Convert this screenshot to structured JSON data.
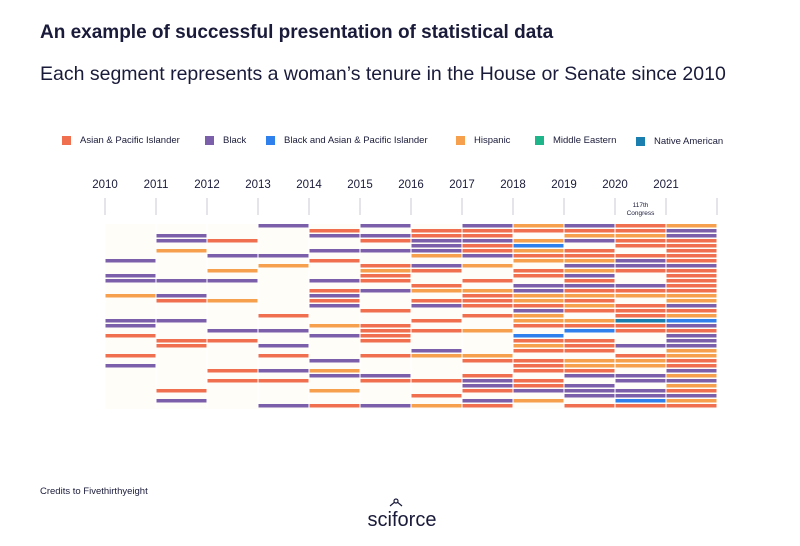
{
  "header": {
    "title": "An example of successful presentation of statistical data",
    "subtitle": "Each segment represents a woman’s tenure in the House or Senate since 2010"
  },
  "legend": [
    {
      "label": "Asian & Pacific Islander",
      "color": "#ef6f4f"
    },
    {
      "label": "Black",
      "color": "#7b5fab"
    },
    {
      "label": "Black and Asian & Pacific Islander",
      "color": "#2f80ed"
    },
    {
      "label": "Hispanic",
      "color": "#f6a04d"
    },
    {
      "label": "Middle Eastern",
      "color": "#1fb58a"
    },
    {
      "label": "Native American",
      "color": "#1a7fae"
    }
  ],
  "footer": {
    "credits": "Credits to Fivethirthyeight",
    "logo_text": "sciforce"
  },
  "chart_data": {
    "type": "bar",
    "layout": "stacked segment rows per year",
    "x": [
      "2010",
      "2011",
      "2012",
      "2013",
      "2014",
      "2015",
      "2016",
      "2017",
      "2018",
      "2019",
      "2020",
      "2021"
    ],
    "annotation": {
      "year": "2020",
      "text": "117th Congress"
    },
    "grid": true,
    "series": [
      {
        "name": "Asian & Pacific Islander",
        "values": [
          17,
          18,
          18,
          20,
          20,
          21,
          21,
          24,
          25,
          28,
          28,
          30
        ]
      },
      {
        "name": "Black",
        "values": [
          13,
          14,
          14,
          14,
          14,
          17,
          17,
          18,
          18,
          23,
          23,
          25
        ]
      },
      {
        "name": "Black and Asian & Pacific Islander",
        "values": [
          0,
          0,
          0,
          0,
          0,
          0,
          0,
          1,
          1,
          1,
          1,
          2
        ]
      },
      {
        "name": "Hispanic",
        "values": [
          7,
          8,
          8,
          9,
          9,
          10,
          10,
          12,
          12,
          15,
          15,
          17
        ]
      },
      {
        "name": "Middle Eastern",
        "values": [
          0,
          0,
          0,
          0,
          0,
          0,
          0,
          0,
          0,
          1,
          1,
          2
        ]
      },
      {
        "name": "Native American",
        "values": [
          0,
          0,
          0,
          0,
          0,
          0,
          0,
          0,
          0,
          2,
          2,
          2
        ]
      }
    ]
  }
}
